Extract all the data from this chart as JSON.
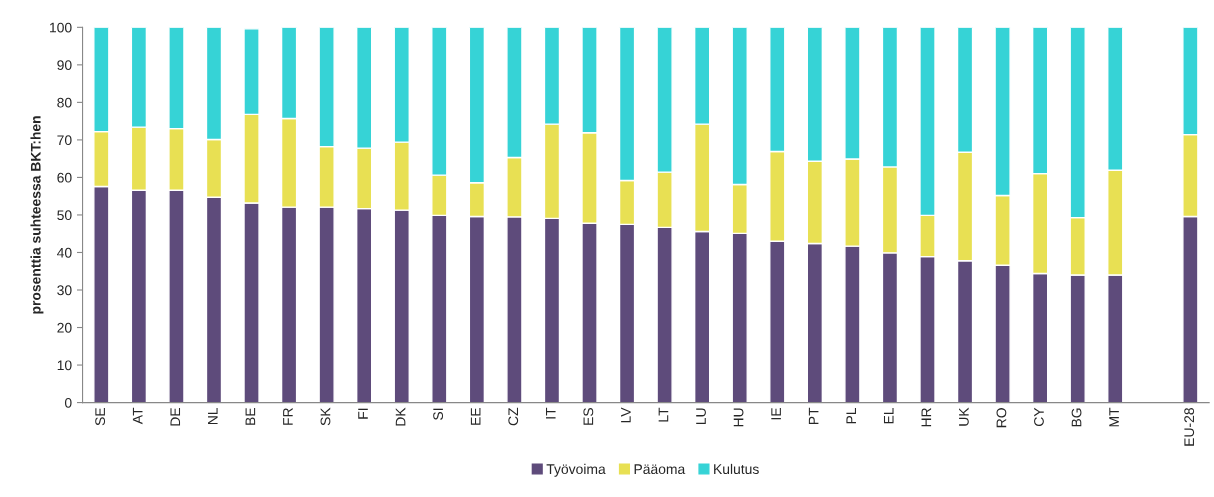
{
  "chart_data": {
    "type": "bar",
    "stacked": true,
    "ylabel": "prosenttia suhteessa BKT:hen",
    "categories": [
      "SE",
      "AT",
      "DE",
      "NL",
      "BE",
      "FR",
      "SK",
      "FI",
      "DK",
      "SI",
      "EE",
      "CZ",
      "IT",
      "ES",
      "LV",
      "LT",
      "LU",
      "HU",
      "IE",
      "PT",
      "PL",
      "EL",
      "HR",
      "UK",
      "RO",
      "CY",
      "BG",
      "MT",
      null,
      "EU-28"
    ],
    "series": [
      {
        "name": "Työvoima",
        "color": "#5e4b7b",
        "values": [
          57.6,
          56.6,
          56.6,
          54.7,
          53.2,
          52.1,
          52.1,
          51.7,
          51.3,
          49.9,
          49.6,
          49.5,
          49.1,
          47.8,
          47.5,
          46.7,
          45.6,
          45.1,
          43.0,
          42.4,
          41.7,
          39.9,
          38.9,
          37.8,
          36.6,
          34.4,
          34.0,
          34.0,
          null,
          49.6
        ]
      },
      {
        "name": "Pääoma",
        "color": "#e8e053",
        "values": [
          14.6,
          16.8,
          16.4,
          15.4,
          23.6,
          23.6,
          16.1,
          16.1,
          18.1,
          10.7,
          9.0,
          15.8,
          25.1,
          24.1,
          11.7,
          14.7,
          28.6,
          13.0,
          23.9,
          21.9,
          23.2,
          22.9,
          11.0,
          28.9,
          18.6,
          26.6,
          15.3,
          27.9,
          null,
          21.8
        ]
      },
      {
        "name": "Kulutus",
        "color": "#36d3d6",
        "values": [
          27.8,
          26.6,
          27.0,
          29.9,
          22.8,
          24.3,
          31.8,
          32.2,
          30.6,
          39.4,
          41.4,
          34.7,
          25.8,
          28.1,
          40.8,
          38.6,
          25.8,
          41.9,
          33.1,
          35.7,
          35.1,
          37.2,
          50.1,
          33.3,
          44.8,
          39.0,
          50.7,
          38.1,
          null,
          28.6
        ]
      }
    ],
    "ylim": [
      0,
      100
    ],
    "yticks": [
      0,
      10,
      20,
      30,
      40,
      50,
      60,
      70,
      80,
      90,
      100
    ],
    "grid": false,
    "legend": "bottom"
  }
}
